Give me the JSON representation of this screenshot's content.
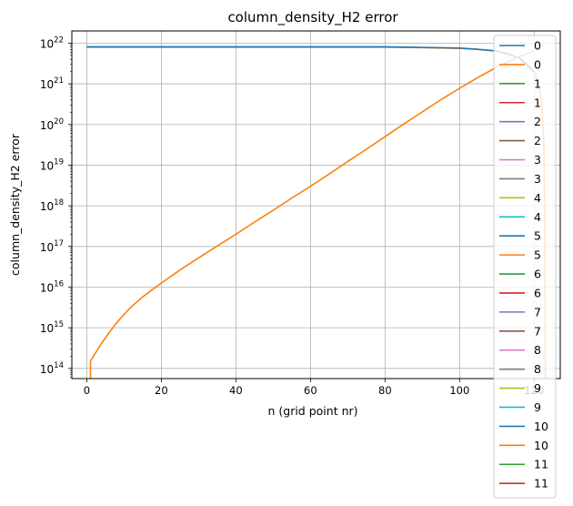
{
  "chart_data": {
    "type": "line",
    "title": "column_density_H2 error",
    "xlabel": "n (grid point nr)",
    "ylabel": "column_density_H2 error",
    "xlim": [
      -4,
      127
    ],
    "ylim_log10": [
      13.75,
      22.3
    ],
    "yscale": "log",
    "grid": true,
    "legend_position": "right",
    "x_ticks": [
      0,
      20,
      40,
      60,
      80,
      100,
      120
    ],
    "y_ticks": [
      {
        "exp": 14,
        "base": "10",
        "power": "14"
      },
      {
        "exp": 15,
        "base": "10",
        "power": "15"
      },
      {
        "exp": 16,
        "base": "10",
        "power": "16"
      },
      {
        "exp": 17,
        "base": "10",
        "power": "17"
      },
      {
        "exp": 18,
        "base": "10",
        "power": "18"
      },
      {
        "exp": 19,
        "base": "10",
        "power": "19"
      },
      {
        "exp": 20,
        "base": "10",
        "power": "20"
      },
      {
        "exp": 21,
        "base": "10",
        "power": "21"
      },
      {
        "exp": 22,
        "base": "10",
        "power": "22"
      }
    ],
    "legend": [
      {
        "label": "0",
        "color": "#1f77b4"
      },
      {
        "label": "0",
        "color": "#ff7f0e"
      },
      {
        "label": "1",
        "color": "#2ca02c"
      },
      {
        "label": "1",
        "color": "#d62728"
      },
      {
        "label": "2",
        "color": "#9467bd"
      },
      {
        "label": "2",
        "color": "#8c564b"
      },
      {
        "label": "3",
        "color": "#e377c2"
      },
      {
        "label": "3",
        "color": "#7f7f7f"
      },
      {
        "label": "4",
        "color": "#bcbd22"
      },
      {
        "label": "4",
        "color": "#17becf"
      },
      {
        "label": "5",
        "color": "#1f77b4"
      },
      {
        "label": "5",
        "color": "#ff7f0e"
      },
      {
        "label": "6",
        "color": "#2ca02c"
      },
      {
        "label": "6",
        "color": "#d62728"
      },
      {
        "label": "7",
        "color": "#9467bd"
      },
      {
        "label": "7",
        "color": "#8c564b"
      },
      {
        "label": "8",
        "color": "#e377c2"
      },
      {
        "label": "8",
        "color": "#7f7f7f"
      },
      {
        "label": "9",
        "color": "#bcbd22"
      },
      {
        "label": "9",
        "color": "#17becf"
      },
      {
        "label": "10",
        "color": "#1f77b4"
      },
      {
        "label": "10",
        "color": "#ff7f0e"
      },
      {
        "label": "11",
        "color": "#2ca02c"
      },
      {
        "label": "11",
        "color": "#d62728"
      }
    ],
    "series": [
      {
        "color": "#ff7f0e",
        "points": [
          [
            0,
            21.9
          ],
          [
            20,
            21.9
          ],
          [
            40,
            21.9
          ],
          [
            60,
            21.9
          ],
          [
            80,
            21.9
          ],
          [
            90,
            21.89
          ],
          [
            100,
            21.87
          ],
          [
            105,
            21.85
          ],
          [
            110,
            21.8
          ],
          [
            113,
            21.74
          ],
          [
            116,
            21.63
          ],
          [
            118,
            21.5
          ],
          [
            120,
            21.28
          ],
          [
            121,
            21.05
          ],
          [
            122,
            20.6
          ],
          [
            122.6,
            19.5
          ],
          [
            122.9,
            17.0
          ],
          [
            123,
            13.75
          ]
        ]
      },
      {
        "color": "#1f77b4",
        "points": [
          [
            0,
            21.91
          ],
          [
            20,
            21.91
          ],
          [
            40,
            21.91
          ],
          [
            60,
            21.91
          ],
          [
            80,
            21.91
          ],
          [
            100,
            21.88
          ],
          [
            110,
            21.81
          ],
          [
            116,
            21.64
          ],
          [
            120,
            21.29
          ]
        ]
      },
      {
        "color": "#ff7f0e",
        "points": [
          [
            1,
            13.75
          ],
          [
            1,
            14.18
          ],
          [
            2,
            14.33
          ],
          [
            4,
            14.62
          ],
          [
            6,
            14.88
          ],
          [
            8,
            15.12
          ],
          [
            10,
            15.33
          ],
          [
            12,
            15.52
          ],
          [
            15,
            15.76
          ],
          [
            20,
            16.1
          ],
          [
            25,
            16.42
          ],
          [
            30,
            16.72
          ],
          [
            35,
            17.01
          ],
          [
            40,
            17.3
          ],
          [
            45,
            17.6
          ],
          [
            50,
            17.89
          ],
          [
            55,
            18.19
          ],
          [
            60,
            18.48
          ],
          [
            65,
            18.78
          ],
          [
            70,
            19.09
          ],
          [
            75,
            19.39
          ],
          [
            80,
            19.7
          ],
          [
            85,
            20.01
          ],
          [
            90,
            20.31
          ],
          [
            95,
            20.61
          ],
          [
            100,
            20.89
          ],
          [
            105,
            21.16
          ],
          [
            110,
            21.41
          ],
          [
            115,
            21.63
          ],
          [
            120,
            21.82
          ]
        ]
      }
    ]
  }
}
